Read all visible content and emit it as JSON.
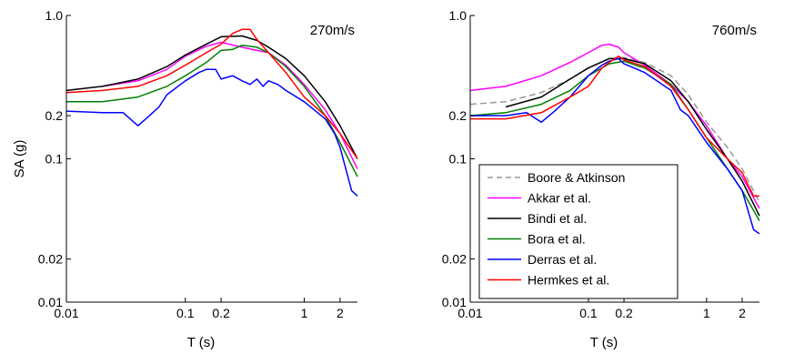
{
  "chart_data": [
    {
      "type": "line",
      "title": "",
      "annotation": "270m/s",
      "xlabel": "T (s)",
      "ylabel": "SA (g)",
      "xscale": "log",
      "yscale": "log",
      "xlim": [
        0.01,
        2.8
      ],
      "ylim": [
        0.01,
        1.0
      ],
      "xticks": [
        0.01,
        0.1,
        0.2,
        1,
        2
      ],
      "xticklabels": [
        "0.01",
        "0.1",
        "0.2",
        "1",
        "2"
      ],
      "yticks": [
        0.01,
        0.02,
        0.1,
        0.2,
        1.0
      ],
      "yticklabels": [
        "0.01",
        "0.02",
        "0.1",
        "0.2",
        "1.0"
      ],
      "grid": false,
      "series": [
        {
          "name": "Akkar et al.",
          "color": "#ff00ff",
          "x": [
            0.02,
            0.04,
            0.07,
            0.1,
            0.15,
            0.2,
            0.3,
            0.4,
            0.5,
            0.7,
            1,
            1.5,
            2,
            2.8
          ],
          "y": [
            0.32,
            0.35,
            0.42,
            0.52,
            0.61,
            0.65,
            0.6,
            0.57,
            0.55,
            0.45,
            0.33,
            0.22,
            0.15,
            0.085
          ]
        },
        {
          "name": "Bindi et al.",
          "color": "#000000",
          "x": [
            0.01,
            0.02,
            0.04,
            0.07,
            0.1,
            0.15,
            0.2,
            0.3,
            0.4,
            0.5,
            0.7,
            1,
            1.5,
            2,
            2.8
          ],
          "y": [
            0.3,
            0.32,
            0.36,
            0.44,
            0.53,
            0.63,
            0.71,
            0.72,
            0.67,
            0.6,
            0.5,
            0.38,
            0.25,
            0.17,
            0.1
          ]
        },
        {
          "name": "Bora et al.",
          "color": "#008000",
          "x": [
            0.01,
            0.02,
            0.04,
            0.07,
            0.1,
            0.15,
            0.2,
            0.25,
            0.3,
            0.4,
            0.5,
            0.7,
            1,
            1.5,
            2,
            2.8
          ],
          "y": [
            0.25,
            0.25,
            0.27,
            0.32,
            0.38,
            0.47,
            0.57,
            0.58,
            0.62,
            0.6,
            0.55,
            0.44,
            0.32,
            0.2,
            0.13,
            0.075
          ]
        },
        {
          "name": "Derras et al.",
          "color": "#0000ff",
          "x": [
            0.01,
            0.02,
            0.03,
            0.04,
            0.05,
            0.06,
            0.07,
            0.1,
            0.13,
            0.15,
            0.18,
            0.2,
            0.25,
            0.3,
            0.35,
            0.4,
            0.45,
            0.5,
            0.6,
            0.7,
            1,
            1.5,
            1.8,
            2,
            2.5,
            2.8
          ],
          "y": [
            0.215,
            0.21,
            0.21,
            0.17,
            0.2,
            0.23,
            0.28,
            0.35,
            0.4,
            0.42,
            0.42,
            0.36,
            0.38,
            0.35,
            0.33,
            0.36,
            0.32,
            0.35,
            0.33,
            0.3,
            0.25,
            0.19,
            0.15,
            0.12,
            0.06,
            0.055
          ]
        },
        {
          "name": "Hermkes et al.",
          "color": "#ff0000",
          "x": [
            0.01,
            0.02,
            0.04,
            0.07,
            0.1,
            0.15,
            0.2,
            0.25,
            0.3,
            0.35,
            0.4,
            0.5,
            0.7,
            1,
            1.5,
            2,
            2.8
          ],
          "y": [
            0.29,
            0.3,
            0.32,
            0.38,
            0.45,
            0.55,
            0.63,
            0.75,
            0.8,
            0.8,
            0.68,
            0.55,
            0.4,
            0.27,
            0.2,
            0.15,
            0.1
          ]
        }
      ]
    },
    {
      "type": "line",
      "title": "",
      "annotation": "760m/s",
      "xlabel": "T (s)",
      "ylabel": "",
      "xscale": "log",
      "yscale": "log",
      "xlim": [
        0.01,
        2.8
      ],
      "ylim": [
        0.01,
        1.0
      ],
      "xticks": [
        0.01,
        0.1,
        0.2,
        1,
        2
      ],
      "xticklabels": [
        "0.01",
        "0.1",
        "0.2",
        "1",
        "2"
      ],
      "yticks": [
        0.01,
        0.02,
        0.1,
        0.2,
        1.0
      ],
      "yticklabels": [
        "0.01",
        "0.02",
        "0.1",
        "0.2",
        "1.0"
      ],
      "grid": false,
      "legend": "bottom-left",
      "series": [
        {
          "name": "Boore & Atkinson",
          "color": "#999999",
          "dash": true,
          "x": [
            0.01,
            0.02,
            0.04,
            0.07,
            0.1,
            0.15,
            0.2,
            0.3,
            0.5,
            0.7,
            1,
            1.5,
            2,
            2.8
          ],
          "y": [
            0.24,
            0.25,
            0.29,
            0.36,
            0.43,
            0.5,
            0.51,
            0.47,
            0.38,
            0.28,
            0.18,
            0.12,
            0.085,
            0.05
          ]
        },
        {
          "name": "Akkar et al.",
          "color": "#ff00ff",
          "x": [
            0.01,
            0.02,
            0.04,
            0.07,
            0.1,
            0.13,
            0.15,
            0.18,
            0.2,
            0.3,
            0.5,
            0.7,
            1,
            1.5,
            2,
            2.8
          ],
          "y": [
            0.3,
            0.32,
            0.38,
            0.47,
            0.55,
            0.62,
            0.63,
            0.6,
            0.55,
            0.45,
            0.33,
            0.25,
            0.17,
            0.1,
            0.075,
            0.045
          ]
        },
        {
          "name": "Bindi et al.",
          "color": "#000000",
          "x": [
            0.02,
            0.04,
            0.07,
            0.1,
            0.15,
            0.2,
            0.3,
            0.5,
            0.7,
            1,
            1.5,
            2,
            2.8
          ],
          "y": [
            0.23,
            0.27,
            0.36,
            0.43,
            0.5,
            0.5,
            0.46,
            0.35,
            0.25,
            0.16,
            0.1,
            0.07,
            0.04
          ]
        },
        {
          "name": "Bora et al.",
          "color": "#008000",
          "x": [
            0.01,
            0.02,
            0.04,
            0.07,
            0.1,
            0.15,
            0.2,
            0.25,
            0.3,
            0.5,
            0.7,
            1,
            1.5,
            2,
            2.8
          ],
          "y": [
            0.2,
            0.21,
            0.24,
            0.3,
            0.38,
            0.46,
            0.48,
            0.45,
            0.43,
            0.33,
            0.22,
            0.14,
            0.085,
            0.06,
            0.037
          ]
        },
        {
          "name": "Derras et al.",
          "color": "#0000ff",
          "x": [
            0.01,
            0.02,
            0.03,
            0.04,
            0.05,
            0.07,
            0.1,
            0.13,
            0.15,
            0.18,
            0.2,
            0.3,
            0.5,
            0.6,
            0.7,
            1,
            1.5,
            2,
            2.5,
            2.8
          ],
          "y": [
            0.2,
            0.2,
            0.21,
            0.18,
            0.21,
            0.27,
            0.38,
            0.45,
            0.48,
            0.5,
            0.46,
            0.4,
            0.3,
            0.22,
            0.2,
            0.13,
            0.085,
            0.06,
            0.032,
            0.03
          ]
        },
        {
          "name": "Hermkes et al.",
          "color": "#ff0000",
          "x": [
            0.01,
            0.02,
            0.04,
            0.07,
            0.1,
            0.13,
            0.15,
            0.18,
            0.2,
            0.3,
            0.5,
            0.7,
            1,
            1.5,
            2,
            2.5,
            2.8
          ],
          "y": [
            0.19,
            0.19,
            0.21,
            0.27,
            0.32,
            0.43,
            0.47,
            0.52,
            0.49,
            0.44,
            0.32,
            0.22,
            0.14,
            0.1,
            0.08,
            0.055,
            0.055
          ]
        }
      ]
    }
  ]
}
